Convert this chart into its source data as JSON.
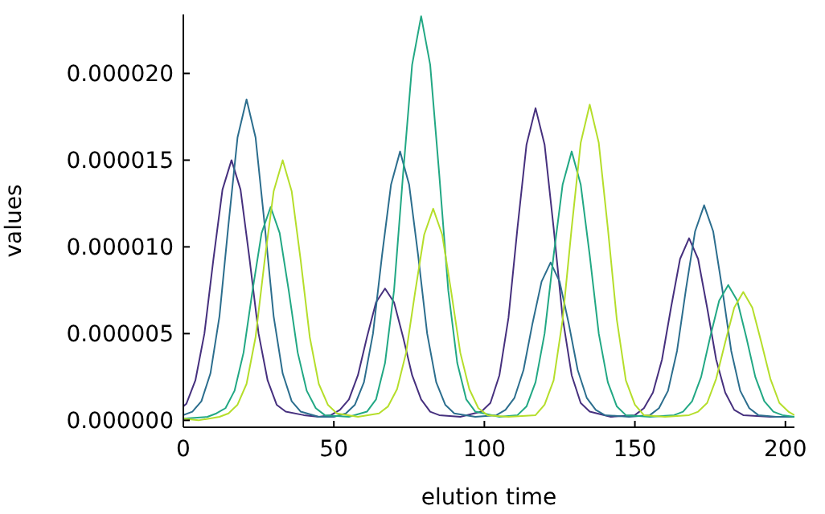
{
  "chart_data": {
    "type": "line",
    "xlabel": "elution time",
    "ylabel": "values",
    "xlim": [
      0,
      203
    ],
    "xticks": [
      0,
      50,
      100,
      150,
      200
    ],
    "ylim": [
      -4e-07,
      2.34e-05
    ],
    "yticks": [
      {
        "value": 0,
        "label": "0.000000"
      },
      {
        "value": 5e-06,
        "label": "0.000005"
      },
      {
        "value": 1e-05,
        "label": "0.000010"
      },
      {
        "value": 1.5e-05,
        "label": "0.000015"
      },
      {
        "value": 2e-05,
        "label": "0.000020"
      }
    ],
    "grid": false,
    "legend": false,
    "marker": "none",
    "line_style": "solid",
    "series": [
      {
        "color": "#46307e",
        "x": [
          0,
          1,
          4,
          7,
          10,
          13,
          16,
          19,
          22,
          25,
          28,
          31,
          34,
          40,
          45,
          49,
          52,
          55,
          58,
          61,
          64,
          67,
          70,
          73,
          76,
          79,
          82,
          85,
          92,
          99,
          102,
          105,
          108,
          111,
          114,
          117,
          120,
          123,
          126,
          129,
          132,
          135,
          142,
          150,
          153,
          156,
          159,
          162,
          165,
          168,
          171,
          174,
          177,
          180,
          183,
          186,
          195,
          203
        ],
        "values": [
          8e-07,
          9.5e-07,
          2.3e-06,
          5e-06,
          9.3e-06,
          1.33e-05,
          1.5e-05,
          1.33e-05,
          9.3e-06,
          5e-06,
          2.3e-06,
          9e-07,
          5e-07,
          3e-07,
          2e-07,
          3e-07,
          6e-07,
          1.2e-06,
          2.6e-06,
          4.8e-06,
          6.8e-06,
          7.6e-06,
          6.8e-06,
          4.8e-06,
          2.6e-06,
          1.2e-06,
          5e-07,
          3e-07,
          2e-07,
          5e-07,
          1e-06,
          2.6e-06,
          5.9e-06,
          1.11e-05,
          1.59e-05,
          1.8e-05,
          1.59e-05,
          1.11e-05,
          5.9e-06,
          2.6e-06,
          1e-06,
          5e-07,
          2e-07,
          3e-07,
          7e-07,
          1.6e-06,
          3.5e-06,
          6.5e-06,
          9.3e-06,
          1.05e-05,
          9.3e-06,
          6.5e-06,
          3.5e-06,
          1.6e-06,
          6e-07,
          3e-07,
          2e-07,
          2e-07
        ]
      },
      {
        "color": "#2c6e8e",
        "x": [
          0,
          3,
          6,
          9,
          12,
          15,
          18,
          21,
          24,
          27,
          30,
          33,
          36,
          39,
          45,
          50,
          54,
          57,
          60,
          63,
          66,
          69,
          72,
          75,
          78,
          81,
          84,
          87,
          90,
          97,
          104,
          107,
          110,
          113,
          116,
          119,
          122,
          125,
          128,
          131,
          134,
          137,
          140,
          148,
          155,
          158,
          161,
          164,
          167,
          170,
          173,
          176,
          179,
          182,
          185,
          188,
          191,
          197,
          203
        ],
        "values": [
          3e-07,
          5e-07,
          1.1e-06,
          2.7e-06,
          6e-06,
          1.13e-05,
          1.63e-05,
          1.85e-05,
          1.63e-05,
          1.13e-05,
          6e-06,
          2.7e-06,
          1.1e-06,
          5e-07,
          2e-07,
          2e-07,
          4e-07,
          9e-07,
          2.2e-06,
          5e-06,
          9.5e-06,
          1.36e-05,
          1.55e-05,
          1.36e-05,
          9.5e-06,
          5e-06,
          2.2e-06,
          9e-07,
          4e-07,
          2e-07,
          3e-07,
          6e-07,
          1.3e-06,
          2.9e-06,
          5.6e-06,
          8e-06,
          9.1e-06,
          8e-06,
          5.6e-06,
          2.9e-06,
          1.3e-06,
          6e-07,
          3e-07,
          2e-07,
          3e-07,
          7e-07,
          1.7e-06,
          4e-06,
          7.6e-06,
          1.09e-05,
          1.24e-05,
          1.09e-05,
          7.6e-06,
          4e-06,
          1.7e-06,
          7e-07,
          3e-07,
          2e-07,
          2e-07
        ]
      },
      {
        "color": "#22a884",
        "x": [
          0,
          8,
          11,
          14,
          17,
          20,
          23,
          26,
          29,
          32,
          35,
          38,
          41,
          44,
          47,
          55,
          61,
          64,
          67,
          70,
          73,
          76,
          79,
          82,
          85,
          88,
          91,
          94,
          97,
          105,
          111,
          114,
          117,
          120,
          123,
          126,
          129,
          132,
          135,
          138,
          141,
          144,
          147,
          155,
          163,
          166,
          169,
          172,
          175,
          178,
          181,
          184,
          187,
          190,
          193,
          196,
          199,
          203
        ],
        "values": [
          1e-07,
          2e-07,
          4e-07,
          7e-07,
          1.7e-06,
          3.9e-06,
          7.5e-06,
          1.08e-05,
          1.23e-05,
          1.08e-05,
          7.5e-06,
          3.9e-06,
          1.7e-06,
          7e-07,
          3e-07,
          2e-07,
          5e-07,
          1.2e-06,
          3.3e-06,
          7.5e-06,
          1.42e-05,
          2.05e-05,
          2.33e-05,
          2.05e-05,
          1.42e-05,
          7.5e-06,
          3.3e-06,
          1.2e-06,
          5e-07,
          2e-07,
          3e-07,
          8e-07,
          2.2e-06,
          5e-06,
          9.5e-06,
          1.36e-05,
          1.55e-05,
          1.36e-05,
          9.5e-06,
          5e-06,
          2.2e-06,
          8e-07,
          3e-07,
          2e-07,
          3e-07,
          5e-07,
          1.1e-06,
          2.5e-06,
          4.8e-06,
          6.9e-06,
          7.8e-06,
          6.9e-06,
          4.8e-06,
          2.5e-06,
          1.1e-06,
          5e-07,
          3e-07,
          2e-07
        ]
      },
      {
        "color": "#b5de2b",
        "x": [
          0,
          5,
          12,
          15,
          18,
          21,
          24,
          27,
          30,
          33,
          36,
          39,
          42,
          45,
          48,
          51,
          58,
          65,
          68,
          71,
          74,
          77,
          80,
          83,
          86,
          89,
          92,
          95,
          98,
          101,
          108,
          117,
          120,
          123,
          126,
          129,
          132,
          135,
          138,
          141,
          144,
          147,
          150,
          153,
          160,
          168,
          171,
          174,
          177,
          180,
          183,
          186,
          189,
          192,
          195,
          198,
          201,
          203
        ],
        "values": [
          1e-07,
          0,
          2e-07,
          4e-07,
          9e-07,
          2.1e-06,
          4.8e-06,
          9.2e-06,
          1.32e-05,
          1.5e-05,
          1.32e-05,
          9.2e-06,
          4.8e-06,
          2.1e-06,
          9e-07,
          4e-07,
          2e-07,
          4e-07,
          8e-07,
          1.8e-06,
          3.9e-06,
          7.4e-06,
          1.07e-05,
          1.22e-05,
          1.07e-05,
          7.4e-06,
          3.9e-06,
          1.8e-06,
          7e-07,
          3e-07,
          2e-07,
          3e-07,
          9e-07,
          2.3e-06,
          5.8e-06,
          1.11e-05,
          1.6e-05,
          1.82e-05,
          1.6e-05,
          1.11e-05,
          5.8e-06,
          2.3e-06,
          9e-07,
          3e-07,
          2e-07,
          3e-07,
          5e-07,
          1e-06,
          2.4e-06,
          4.5e-06,
          6.5e-06,
          7.4e-06,
          6.5e-06,
          4.5e-06,
          2.4e-06,
          1e-06,
          5e-07,
          3e-07
        ]
      }
    ]
  }
}
